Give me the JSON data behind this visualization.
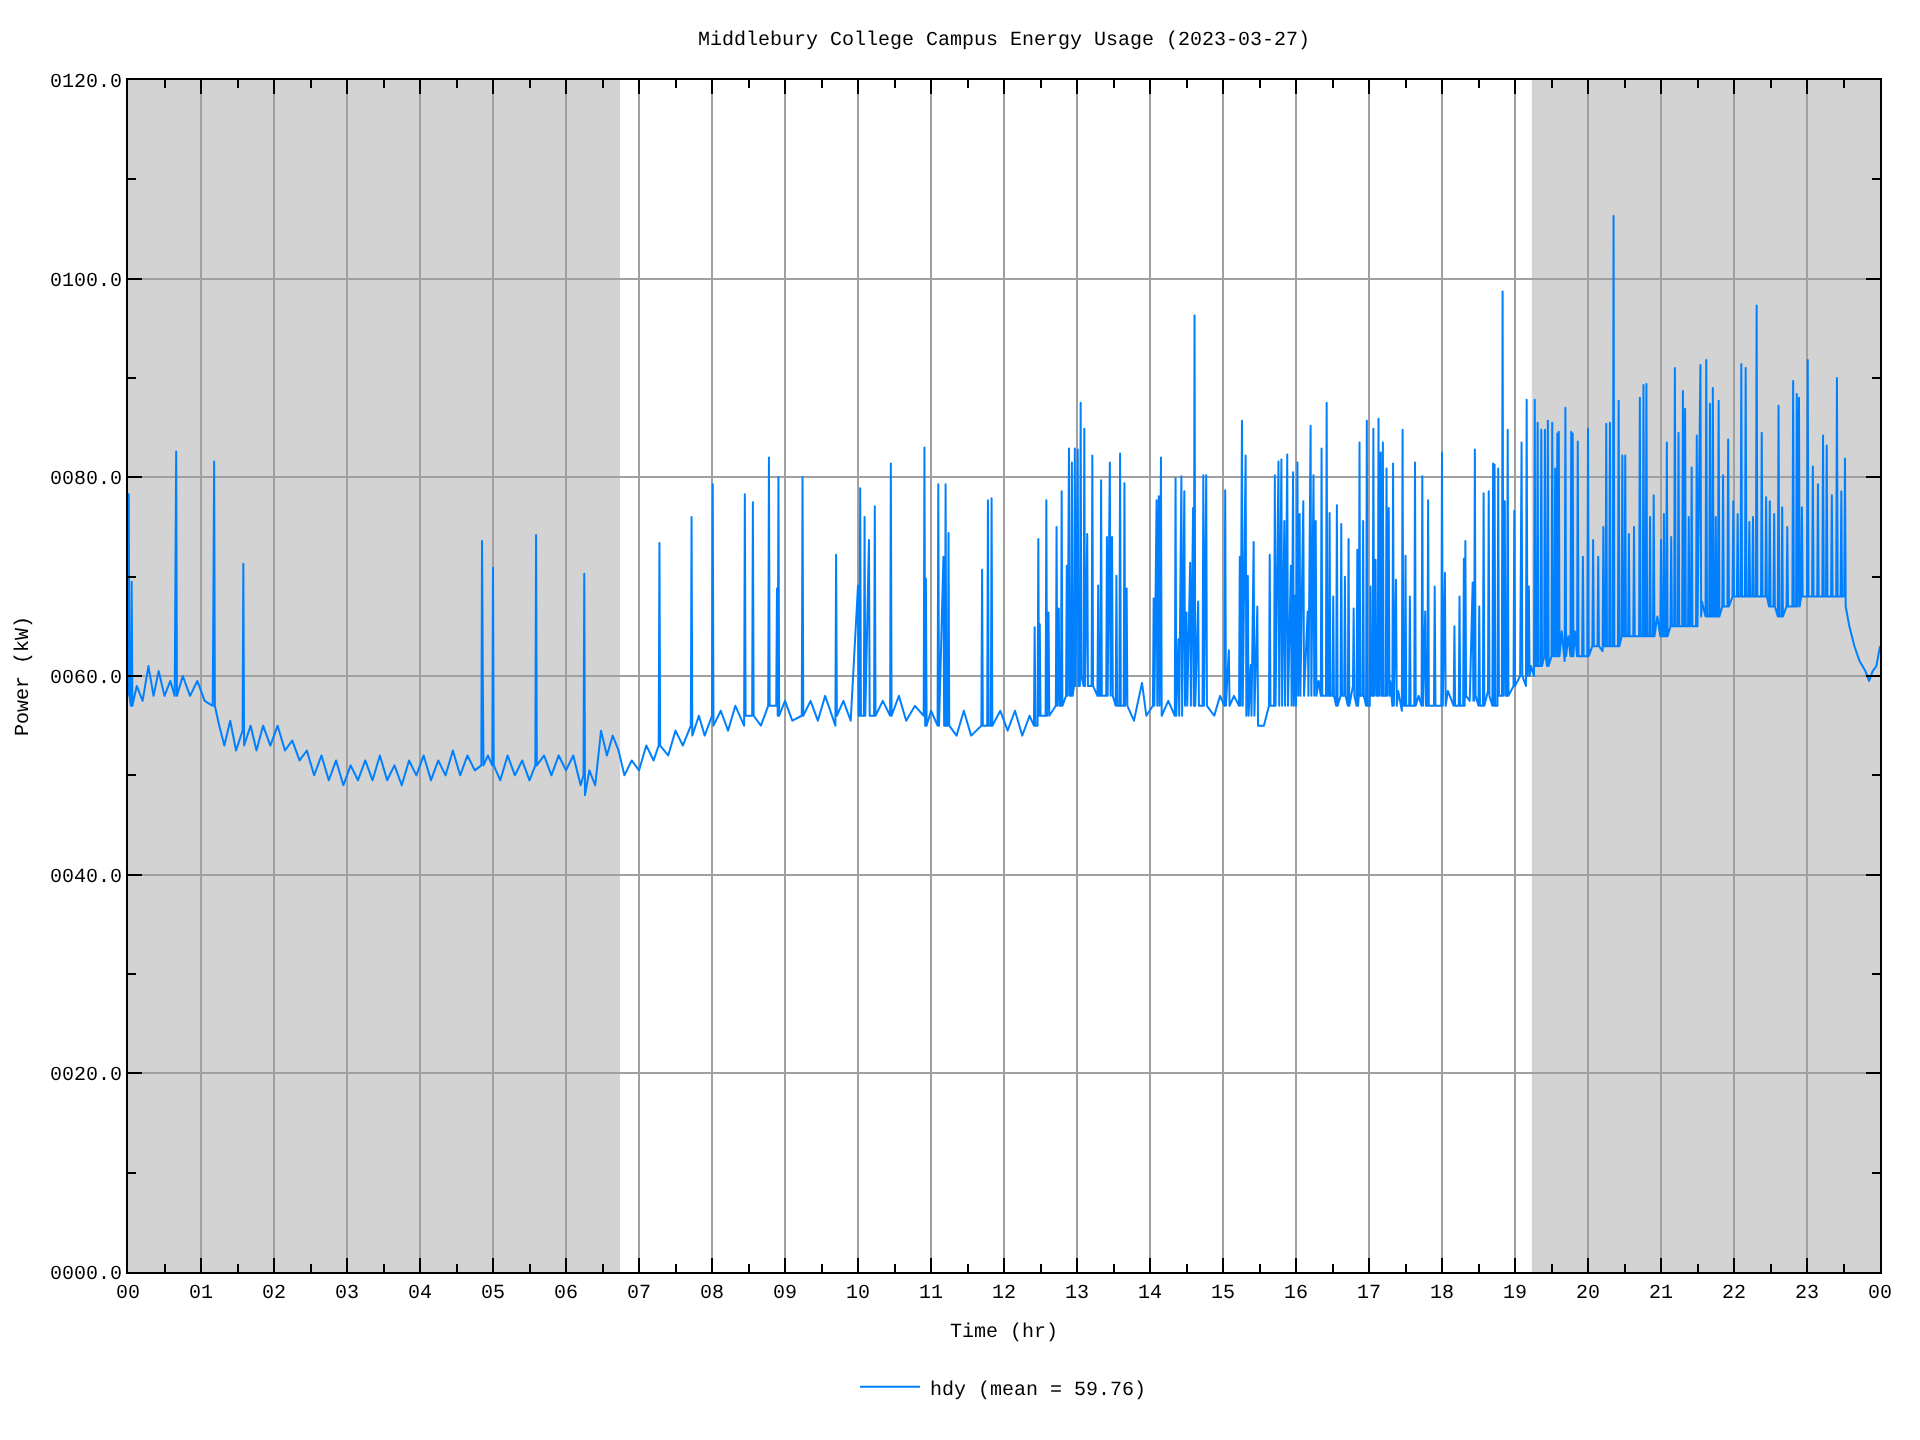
{
  "chart_data": {
    "type": "line",
    "title": "Middlebury College Campus Energy Usage (2023-03-27)",
    "xlabel": "Time (hr)",
    "ylabel": "Power (kW)",
    "xlim": [
      0,
      24
    ],
    "ylim": [
      0,
      120
    ],
    "xticks": [
      {
        "value": 0,
        "label": "00"
      },
      {
        "value": 0.5,
        "label": null
      },
      {
        "value": 1,
        "label": "01"
      },
      {
        "value": 1.5,
        "label": null
      },
      {
        "value": 2,
        "label": "02"
      },
      {
        "value": 2.5,
        "label": null
      },
      {
        "value": 3,
        "label": "03"
      },
      {
        "value": 3.5,
        "label": null
      },
      {
        "value": 4,
        "label": "04"
      },
      {
        "value": 4.5,
        "label": null
      },
      {
        "value": 5,
        "label": "05"
      },
      {
        "value": 5.5,
        "label": null
      },
      {
        "value": 6,
        "label": "06"
      },
      {
        "value": 6.5,
        "label": null
      },
      {
        "value": 7,
        "label": "07"
      },
      {
        "value": 7.5,
        "label": null
      },
      {
        "value": 8,
        "label": "08"
      },
      {
        "value": 8.5,
        "label": null
      },
      {
        "value": 9,
        "label": "09"
      },
      {
        "value": 9.5,
        "label": null
      },
      {
        "value": 10,
        "label": "10"
      },
      {
        "value": 10.5,
        "label": null
      },
      {
        "value": 11,
        "label": "11"
      },
      {
        "value": 11.5,
        "label": null
      },
      {
        "value": 12,
        "label": "12"
      },
      {
        "value": 12.5,
        "label": null
      },
      {
        "value": 13,
        "label": "13"
      },
      {
        "value": 13.5,
        "label": null
      },
      {
        "value": 14,
        "label": "14"
      },
      {
        "value": 14.5,
        "label": null
      },
      {
        "value": 15,
        "label": "15"
      },
      {
        "value": 15.5,
        "label": null
      },
      {
        "value": 16,
        "label": "16"
      },
      {
        "value": 16.5,
        "label": null
      },
      {
        "value": 17,
        "label": "17"
      },
      {
        "value": 17.5,
        "label": null
      },
      {
        "value": 18,
        "label": "18"
      },
      {
        "value": 18.5,
        "label": null
      },
      {
        "value": 19,
        "label": "19"
      },
      {
        "value": 19.5,
        "label": null
      },
      {
        "value": 20,
        "label": "20"
      },
      {
        "value": 20.5,
        "label": null
      },
      {
        "value": 21,
        "label": "21"
      },
      {
        "value": 21.5,
        "label": null
      },
      {
        "value": 22,
        "label": "22"
      },
      {
        "value": 22.5,
        "label": null
      },
      {
        "value": 23,
        "label": "23"
      },
      {
        "value": 23.5,
        "label": null
      },
      {
        "value": 24,
        "label": "00"
      }
    ],
    "yticks": [
      {
        "value": 0,
        "label": "0000.0"
      },
      {
        "value": 10,
        "label": null
      },
      {
        "value": 20,
        "label": "0020.0"
      },
      {
        "value": 30,
        "label": null
      },
      {
        "value": 40,
        "label": "0040.0"
      },
      {
        "value": 50,
        "label": null
      },
      {
        "value": 60,
        "label": "0060.0"
      },
      {
        "value": 70,
        "label": null
      },
      {
        "value": 80,
        "label": "0080.0"
      },
      {
        "value": 90,
        "label": null
      },
      {
        "value": 100,
        "label": "0100.0"
      },
      {
        "value": 110,
        "label": null
      },
      {
        "value": 120,
        "label": "0120.0"
      }
    ],
    "grid": true,
    "legend": "bottom",
    "bands": [
      {
        "axis": "x",
        "from": 0,
        "to": 6.74,
        "color": "#d3d3d3"
      },
      {
        "axis": "x",
        "from": 19.23,
        "to": 24,
        "color": "#d3d3d3"
      }
    ],
    "x": [
      0,
      0.01,
      0.02,
      0.04,
      0.05,
      0.06,
      0.12,
      0.2,
      0.28,
      0.35,
      0.42,
      0.5,
      0.58,
      0.64,
      0.65,
      0.66,
      0.67,
      0.75,
      0.85,
      0.95,
      1.05,
      1.16,
      1.17,
      1.18,
      1.19,
      1.25,
      1.32,
      1.4,
      1.48,
      1.57,
      1.58,
      1.59,
      1.68,
      1.76,
      1.85,
      1.95,
      2.05,
      2.15,
      2.25,
      2.35,
      2.45,
      2.55,
      2.65,
      2.75,
      2.85,
      2.95,
      3.05,
      3.15,
      3.25,
      3.35,
      3.45,
      3.55,
      3.65,
      3.75,
      3.85,
      3.95,
      4.05,
      4.15,
      4.25,
      4.35,
      4.45,
      4.55,
      4.65,
      4.75,
      4.84,
      4.85,
      4.86,
      4.87,
      4.93,
      4.99,
      5.0,
      5.01,
      5.1,
      5.2,
      5.3,
      5.4,
      5.5,
      5.58,
      5.59,
      5.6,
      5.7,
      5.8,
      5.9,
      6.0,
      6.1,
      6.2,
      6.24,
      6.25,
      6.26,
      6.32,
      6.4,
      6.48,
      6.56,
      6.64,
      6.72,
      6.8,
      6.9,
      7.0,
      7.1,
      7.2,
      7.27,
      7.28,
      7.29,
      7.4,
      7.5,
      7.6,
      7.71,
      7.72,
      7.73,
      7.82,
      7.9,
      8.0,
      8.01,
      8.02,
      8.12,
      8.22,
      8.32,
      8.44,
      8.45,
      8.46,
      8.55,
      8.56,
      8.57,
      8.67,
      8.77,
      8.78,
      8.79,
      8.88,
      8.89,
      8.9,
      8.91,
      8.92,
      9.0,
      9.1,
      9.23,
      9.24,
      9.25,
      9.35,
      9.45,
      9.55,
      9.69,
      9.7,
      9.71,
      9.8,
      9.9,
      10.0,
      10.01,
      10.02,
      10.03,
      10.04,
      10.08,
      10.09,
      10.1,
      10.15,
      10.16,
      10.22,
      10.23,
      10.24,
      10.34,
      10.44,
      10.45,
      10.46,
      10.56,
      10.66,
      10.78,
      10.9,
      10.91,
      10.92,
      10.93,
      10.94,
      11.0,
      11.09,
      11.1,
      11.11,
      11.17,
      11.18,
      11.19,
      11.2,
      11.21,
      11.23,
      11.24,
      11.25,
      11.35,
      11.45,
      11.55,
      11.69,
      11.7,
      11.71,
      11.77,
      11.78,
      11.79,
      11.82,
      11.83,
      11.84,
      11.95,
      12.05,
      12.15,
      12.25,
      12.35,
      12.41,
      12.42,
      12.43,
      12.46,
      12.47,
      12.48,
      12.49,
      12.5,
      12.57,
      12.58,
      12.59,
      12.61,
      12.62,
      12.71,
      12.72,
      12.73,
      12.75,
      12.76,
      12.78,
      12.79,
      12.8,
      12.85,
      12.86,
      12.87,
      12.89,
      12.9,
      12.92,
      12.93,
      12.94,
      12.96,
      12.97,
      12.98,
      13.01,
      13.02,
      13.04,
      13.05,
      13.06,
      13.09,
      13.1,
      13.11,
      13.14,
      13.15,
      13.2,
      13.21,
      13.22,
      13.28,
      13.29,
      13.3,
      13.32,
      13.33,
      13.34,
      13.4,
      13.41,
      13.42,
      13.45,
      13.46,
      13.48,
      13.49,
      13.53,
      13.54,
      13.55,
      13.58,
      13.59,
      13.6,
      13.64,
      13.65,
      13.66,
      13.68,
      13.69,
      13.78,
      13.89,
      13.95,
      14.04,
      14.05,
      14.06,
      14.09,
      14.1,
      14.12,
      14.13,
      14.15,
      14.16,
      14.25,
      14.34,
      14.35,
      14.36,
      14.39,
      14.4,
      14.43,
      14.44,
      14.47,
      14.48,
      14.5,
      14.51,
      14.55,
      14.56,
      14.59,
      14.6,
      14.61,
      14.62,
      14.66,
      14.67,
      14.72,
      14.73,
      14.74,
      14.77,
      14.78,
      14.88,
      14.96,
      15.02,
      15.03,
      15.04,
      15.08,
      15.09,
      15.15,
      15.22,
      15.23,
      15.24,
      15.26,
      15.27,
      15.31,
      15.32,
      15.34,
      15.35,
      15.38,
      15.39,
      15.42,
      15.43,
      15.47,
      15.48,
      15.56,
      15.63,
      15.64,
      15.65,
      15.7,
      15.71,
      15.72,
      15.76,
      15.77,
      15.8,
      15.81,
      15.84,
      15.85,
      15.88,
      15.89,
      15.93,
      15.94,
      15.96,
      15.97,
      15.99,
      16.0,
      16.02,
      16.03,
      16.05,
      16.06,
      16.1,
      16.11,
      16.16,
      16.17,
      16.2,
      16.21,
      16.24,
      16.25,
      16.27,
      16.28,
      16.31,
      16.34,
      16.35,
      16.36,
      16.41,
      16.42,
      16.43,
      16.45,
      16.46,
      16.47,
      16.5,
      16.51,
      16.52,
      16.55,
      16.56,
      16.57,
      16.61,
      16.62,
      16.63,
      16.66,
      16.67,
      16.68,
      16.71,
      16.72,
      16.73,
      16.78,
      16.79,
      16.8,
      16.83,
      16.84,
      16.85,
      16.86,
      16.87,
      16.88,
      16.91,
      16.92,
      16.93,
      16.96,
      16.97,
      16.98,
      17.01,
      17.02,
      17.03,
      17.05,
      17.06,
      17.07,
      17.09,
      17.1,
      17.12,
      17.13,
      17.14,
      17.16,
      17.17,
      17.18,
      17.19,
      17.2,
      17.23,
      17.24,
      17.25,
      17.27,
      17.28,
      17.29,
      17.32,
      17.33,
      17.34,
      17.37,
      17.38,
      17.4,
      17.45,
      17.46,
      17.47,
      17.49,
      17.5,
      17.51,
      17.55,
      17.56,
      17.57,
      17.62,
      17.63,
      17.64,
      17.68,
      17.72,
      17.73,
      17.74,
      17.77,
      17.78,
      17.8,
      17.81,
      17.82,
      17.89,
      17.9,
      17.91,
      17.99,
      18.0,
      18.01,
      18.04,
      18.05,
      18.08,
      18.16,
      18.17,
      18.18,
      18.23,
      18.24,
      18.25,
      18.29,
      18.3,
      18.31,
      18.32,
      18.33,
      18.38,
      18.42,
      18.43,
      18.44,
      18.45,
      18.46,
      18.5,
      18.51,
      18.52,
      18.56,
      18.57,
      18.58,
      18.63,
      18.64,
      18.65,
      18.69,
      18.7,
      18.71,
      18.72,
      18.73,
      18.76,
      18.77,
      18.78,
      18.82,
      18.83,
      18.84,
      18.86,
      18.87,
      18.89,
      18.9,
      18.91,
      18.98,
      18.99,
      19.0,
      19.07,
      19.09,
      19.1,
      19.15,
      19.16,
      19.17,
      19.19,
      19.2,
      19.22,
      19.26,
      19.27,
      19.28,
      19.3,
      19.31,
      19.32,
      19.35,
      19.36,
      19.37,
      19.4,
      19.41,
      19.42,
      19.44,
      19.45,
      19.46,
      19.5,
      19.51,
      19.52,
      19.54,
      19.55,
      19.56,
      19.57,
      19.58,
      19.59,
      19.6,
      19.61,
      19.64,
      19.68,
      19.69,
      19.7,
      19.73,
      19.76,
      19.77,
      19.78,
      19.79,
      19.8,
      19.82,
      19.85,
      19.86,
      19.87,
      19.92,
      19.93,
      19.94,
      19.99,
      20.0,
      20.01,
      20.06,
      20.07,
      20.08,
      20.13,
      20.14,
      20.15,
      20.2,
      20.21,
      20.22,
      20.24,
      20.25,
      20.26,
      20.29,
      20.3,
      20.31,
      20.34,
      20.35,
      20.36,
      20.41,
      20.42,
      20.43,
      20.46,
      20.47,
      20.48,
      20.5,
      20.51,
      20.52,
      20.55,
      20.56,
      20.57,
      20.62,
      20.63,
      20.64,
      20.7,
      20.71,
      20.72,
      20.75,
      20.76,
      20.77,
      20.79,
      20.8,
      20.81,
      20.84,
      20.85,
      20.86,
      20.89,
      20.9,
      20.91,
      20.95,
      20.99,
      21.0,
      21.01,
      21.03,
      21.04,
      21.05,
      21.07,
      21.08,
      21.09,
      21.13,
      21.14,
      21.15,
      21.18,
      21.19,
      21.2,
      21.23,
      21.24,
      21.25,
      21.29,
      21.3,
      21.31,
      21.32,
      21.33,
      21.34,
      21.37,
      21.38,
      21.39,
      21.41,
      21.42,
      21.43,
      21.48,
      21.49,
      21.5,
      21.54,
      21.55,
      21.56,
      21.61,
      21.62,
      21.63,
      21.66,
      21.67,
      21.68,
      21.7,
      21.71,
      21.72,
      21.74,
      21.75,
      21.76,
      21.78,
      21.79,
      21.8,
      21.84,
      21.85,
      21.86,
      21.91,
      21.92,
      21.93,
      21.98,
      21.99,
      22.0,
      22.04,
      22.05,
      22.06,
      22.09,
      22.1,
      22.11,
      22.15,
      22.16,
      22.17,
      22.2,
      22.21,
      22.22,
      22.25,
      22.26,
      22.27,
      22.3,
      22.31,
      22.32,
      22.37,
      22.38,
      22.39,
      22.43,
      22.44,
      22.45,
      22.48,
      22.49,
      22.5,
      22.54,
      22.55,
      22.56,
      22.6,
      22.61,
      22.62,
      22.65,
      22.66,
      22.67,
      22.72,
      22.73,
      22.74,
      22.8,
      22.81,
      22.82,
      22.85,
      22.86,
      22.87,
      22.89,
      22.9,
      22.92,
      22.93,
      22.94,
      23.0,
      23.01,
      23.02,
      23.07,
      23.08,
      23.09,
      23.14,
      23.15,
      23.16,
      23.21,
      23.22,
      23.23,
      23.26,
      23.27,
      23.28,
      23.33,
      23.34,
      23.35,
      23.4,
      23.41,
      23.42,
      23.46,
      23.47,
      23.48,
      23.51,
      23.52,
      23.53,
      23.58,
      23.65,
      23.72,
      23.8,
      23.85,
      23.9,
      23.95,
      24
    ],
    "series": [
      {
        "name": "hdy (mean = 59.76)",
        "color": "#0080ff",
        "values": [
          58,
          78.3,
          58,
          57,
          69.5,
          57,
          59,
          57.5,
          61,
          58,
          60.5,
          58,
          59.5,
          58,
          70.5,
          82.6,
          58,
          60,
          58,
          59.5,
          57.5,
          57,
          68,
          81.6,
          57,
          55,
          53,
          55.5,
          52.5,
          54.5,
          71.3,
          53,
          55,
          52.5,
          55,
          53,
          55,
          52.5,
          53.5,
          51.5,
          52.5,
          50,
          52,
          49.5,
          51.5,
          49,
          51,
          49.5,
          51.5,
          49.5,
          52,
          49.5,
          51,
          49,
          51.5,
          50,
          52,
          49.5,
          51.5,
          50,
          52.5,
          50,
          52,
          50.5,
          51,
          73.6,
          60,
          51,
          52,
          51,
          70.9,
          51,
          49.5,
          52,
          50,
          51.5,
          49.5,
          51,
          74.2,
          51,
          52,
          50,
          52,
          50.5,
          52,
          49,
          50,
          70.3,
          48,
          50.5,
          49,
          54.5,
          52,
          54,
          52.5,
          50,
          51.5,
          50.5,
          53,
          51.5,
          53,
          73.4,
          53,
          52,
          54.5,
          53,
          55,
          76,
          54,
          56,
          54,
          56,
          79.3,
          55,
          56.5,
          54.5,
          57,
          55,
          78.3,
          56,
          56,
          77.5,
          56,
          55,
          57,
          82,
          57,
          57,
          68.8,
          56,
          80,
          56,
          57.5,
          55.5,
          56,
          80,
          56,
          57.5,
          55.5,
          58,
          55,
          72.2,
          56,
          57.5,
          55.5,
          69.1,
          56,
          56,
          78.9,
          56,
          56,
          76,
          56,
          73.7,
          56,
          56,
          77.1,
          56,
          57.5,
          56,
          81.4,
          56,
          58,
          55.5,
          57,
          56,
          83,
          55,
          69.8,
          55,
          56.5,
          55,
          79.3,
          55,
          72,
          55,
          55,
          79.3,
          55,
          55,
          74.4,
          55,
          54,
          56.5,
          54,
          55,
          70.7,
          55,
          55,
          77.7,
          55,
          55,
          77.9,
          55,
          56.5,
          54.5,
          56.5,
          54,
          56,
          55,
          64.9,
          55,
          55,
          73.8,
          56,
          65.2,
          56,
          56,
          77.7,
          56,
          66.4,
          56,
          57,
          75,
          57,
          66.8,
          57,
          57,
          78.6,
          57,
          58,
          71.1,
          58,
          82.9,
          58,
          58,
          81.5,
          58,
          59,
          82.9,
          59,
          82.8,
          59,
          59,
          87.5,
          60,
          59,
          84.9,
          59,
          74.3,
          59,
          59,
          82.2,
          59,
          58,
          69.1,
          58,
          58,
          79.7,
          58,
          58,
          74,
          58,
          81.5,
          58,
          74,
          58,
          57,
          70.1,
          57,
          57,
          82.4,
          57,
          57,
          79.4,
          57,
          68.8,
          57,
          55.5,
          59.3,
          56,
          57,
          67.8,
          57,
          77.7,
          57,
          78.1,
          57,
          82,
          56,
          57.5,
          56,
          79.9,
          56,
          63.7,
          56,
          80.1,
          56,
          78.6,
          57,
          66.4,
          57,
          71.4,
          57,
          76.9,
          57,
          96.3,
          57,
          67.5,
          57,
          57,
          80.2,
          57,
          80.2,
          57,
          56,
          58,
          57,
          78.7,
          57,
          62.6,
          57,
          58,
          57,
          72,
          57,
          85.7,
          57,
          82.2,
          56,
          70.1,
          56,
          61.1,
          56,
          73.5,
          56,
          67,
          55,
          55,
          57,
          72.2,
          57,
          57,
          80.2,
          57,
          81.6,
          57,
          81.8,
          57,
          75.6,
          57,
          82.3,
          57,
          71.1,
          57,
          80.5,
          57,
          68.1,
          57,
          81.5,
          58,
          76.3,
          58,
          77.6,
          58,
          66.5,
          58,
          85.2,
          58,
          80.2,
          58,
          75.6,
          58,
          59.5,
          58,
          82.9,
          58,
          58,
          87.5,
          58,
          58,
          76.4,
          58,
          58,
          68,
          58,
          57,
          77.2,
          57,
          58,
          75.3,
          58,
          58,
          70,
          58,
          57,
          73.8,
          57,
          59,
          66.8,
          58,
          57,
          72.7,
          57,
          58,
          83.5,
          58,
          58,
          75.6,
          58,
          57,
          85.7,
          57,
          57,
          69,
          58,
          58,
          84.9,
          58,
          71.7,
          58,
          58,
          85.9,
          58,
          82.5,
          58,
          58,
          83.5,
          58,
          58,
          80.9,
          58,
          76.9,
          58,
          59.5,
          57,
          81.4,
          57,
          69.7,
          57,
          58.5,
          56.5,
          84.8,
          57,
          57,
          72.1,
          57,
          57,
          68,
          57,
          57,
          81.5,
          57,
          58,
          57,
          80.1,
          57,
          66.5,
          57,
          57,
          77.7,
          57,
          57,
          69,
          57,
          57,
          82.5,
          57,
          70.4,
          57,
          58.5,
          57,
          65,
          57,
          57,
          68,
          57,
          57,
          71.8,
          57,
          73.6,
          58,
          57.5,
          69.4,
          57.5,
          57.5,
          82.8,
          58,
          57,
          67,
          57,
          57,
          78.4,
          57,
          58.5,
          78.6,
          58,
          57,
          81.4,
          57,
          81.3,
          57,
          57,
          80.9,
          58,
          58,
          98.7,
          58,
          77.6,
          58,
          58,
          84.8,
          58,
          59,
          76.6,
          59,
          60,
          83.5,
          60,
          59,
          87.8,
          60,
          69,
          60,
          61,
          60,
          87.8,
          61,
          61,
          85.5,
          61,
          61,
          84.8,
          61,
          62,
          84.8,
          62,
          61,
          85.7,
          61,
          62,
          85.5,
          62,
          62,
          80.9,
          62,
          62,
          84.4,
          62,
          84.6,
          62,
          64.5,
          61.5,
          87,
          62,
          64,
          62,
          84.6,
          62,
          84.4,
          62,
          64.5,
          62,
          83.6,
          62,
          62,
          72,
          62,
          62,
          84.9,
          62,
          63,
          73.7,
          63,
          63,
          72,
          63,
          62.5,
          75,
          63,
          63,
          85.4,
          63,
          63,
          85.5,
          63,
          63,
          106.3,
          63,
          63,
          87.7,
          63,
          64,
          82.2,
          64,
          64,
          82.2,
          64,
          64,
          74.3,
          64,
          64,
          75,
          64,
          64,
          88,
          64,
          64,
          89.3,
          64,
          64,
          89.4,
          64,
          64,
          76,
          64,
          64,
          78.2,
          64,
          66,
          64,
          73.7,
          64,
          64,
          76.3,
          64,
          64,
          83.5,
          64,
          65,
          74,
          65,
          65,
          91,
          65,
          65,
          84.5,
          65,
          65,
          88.7,
          65,
          65,
          86.9,
          65,
          65,
          76,
          65,
          65,
          81,
          65,
          65,
          84.2,
          65,
          91.3,
          66,
          67.5,
          66,
          91.8,
          66,
          66,
          87.4,
          66,
          66,
          89,
          66,
          66,
          76,
          66,
          66,
          87.7,
          66,
          67,
          80.2,
          67,
          67,
          83.8,
          67,
          68,
          77.6,
          68,
          68,
          76.3,
          68,
          68,
          91.4,
          68,
          68,
          91,
          68,
          68,
          75.5,
          68,
          68,
          76,
          68,
          68,
          97.3,
          68,
          68,
          84.5,
          68,
          68,
          78,
          68,
          67,
          77.6,
          67,
          67,
          76.3,
          67,
          66,
          87.2,
          66,
          66,
          77,
          66,
          67,
          75,
          67,
          67,
          89.7,
          67,
          67,
          88.4,
          67,
          88,
          67,
          68,
          77,
          68,
          68,
          91.8,
          68,
          68,
          81.1,
          68,
          68,
          79.3,
          68,
          68,
          84.2,
          68,
          68,
          83.2,
          68,
          68,
          78.2,
          68,
          68,
          90,
          68,
          68,
          78.6,
          68,
          68,
          81.9,
          67,
          65,
          63,
          61.5,
          60.5,
          59.5,
          60.5,
          61,
          63
        ]
      }
    ]
  }
}
